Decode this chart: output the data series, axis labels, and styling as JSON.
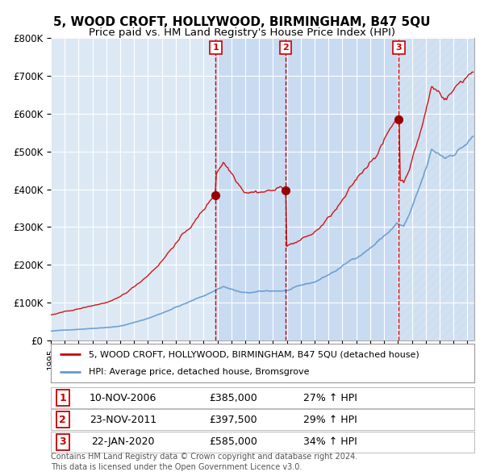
{
  "title": "5, WOOD CROFT, HOLLYWOOD, BIRMINGHAM, B47 5QU",
  "subtitle": "Price paid vs. HM Land Registry's House Price Index (HPI)",
  "legend_red": "5, WOOD CROFT, HOLLYWOOD, BIRMINGHAM, B47 5QU (detached house)",
  "legend_blue": "HPI: Average price, detached house, Bromsgrove",
  "footer1": "Contains HM Land Registry data © Crown copyright and database right 2024.",
  "footer2": "This data is licensed under the Open Government Licence v3.0.",
  "transactions": [
    {
      "num": 1,
      "date": "10-NOV-2006",
      "price": 385000,
      "pct": "27%",
      "dir": "↑"
    },
    {
      "num": 2,
      "date": "23-NOV-2011",
      "price": 397500,
      "pct": "29%",
      "dir": "↑"
    },
    {
      "num": 3,
      "date": "22-JAN-2020",
      "price": 585000,
      "pct": "34%",
      "dir": "↑"
    }
  ],
  "sale_dates_dec": [
    2006.87,
    2011.9,
    2020.06
  ],
  "sale_prices": [
    385000,
    397500,
    585000
  ],
  "ylim": [
    0,
    800000
  ],
  "yticks": [
    0,
    100000,
    200000,
    300000,
    400000,
    500000,
    600000,
    700000,
    800000
  ],
  "ytick_labels": [
    "£0",
    "£100K",
    "£200K",
    "£300K",
    "£400K",
    "£500K",
    "£600K",
    "£700K",
    "£800K"
  ],
  "xmin": 1995.0,
  "xmax": 2025.5,
  "bg_color": "#dce9f5",
  "grid_color": "#ffffff",
  "red_line_color": "#cc0000",
  "blue_line_color": "#6699cc",
  "shade_color": "#c5d8f0"
}
